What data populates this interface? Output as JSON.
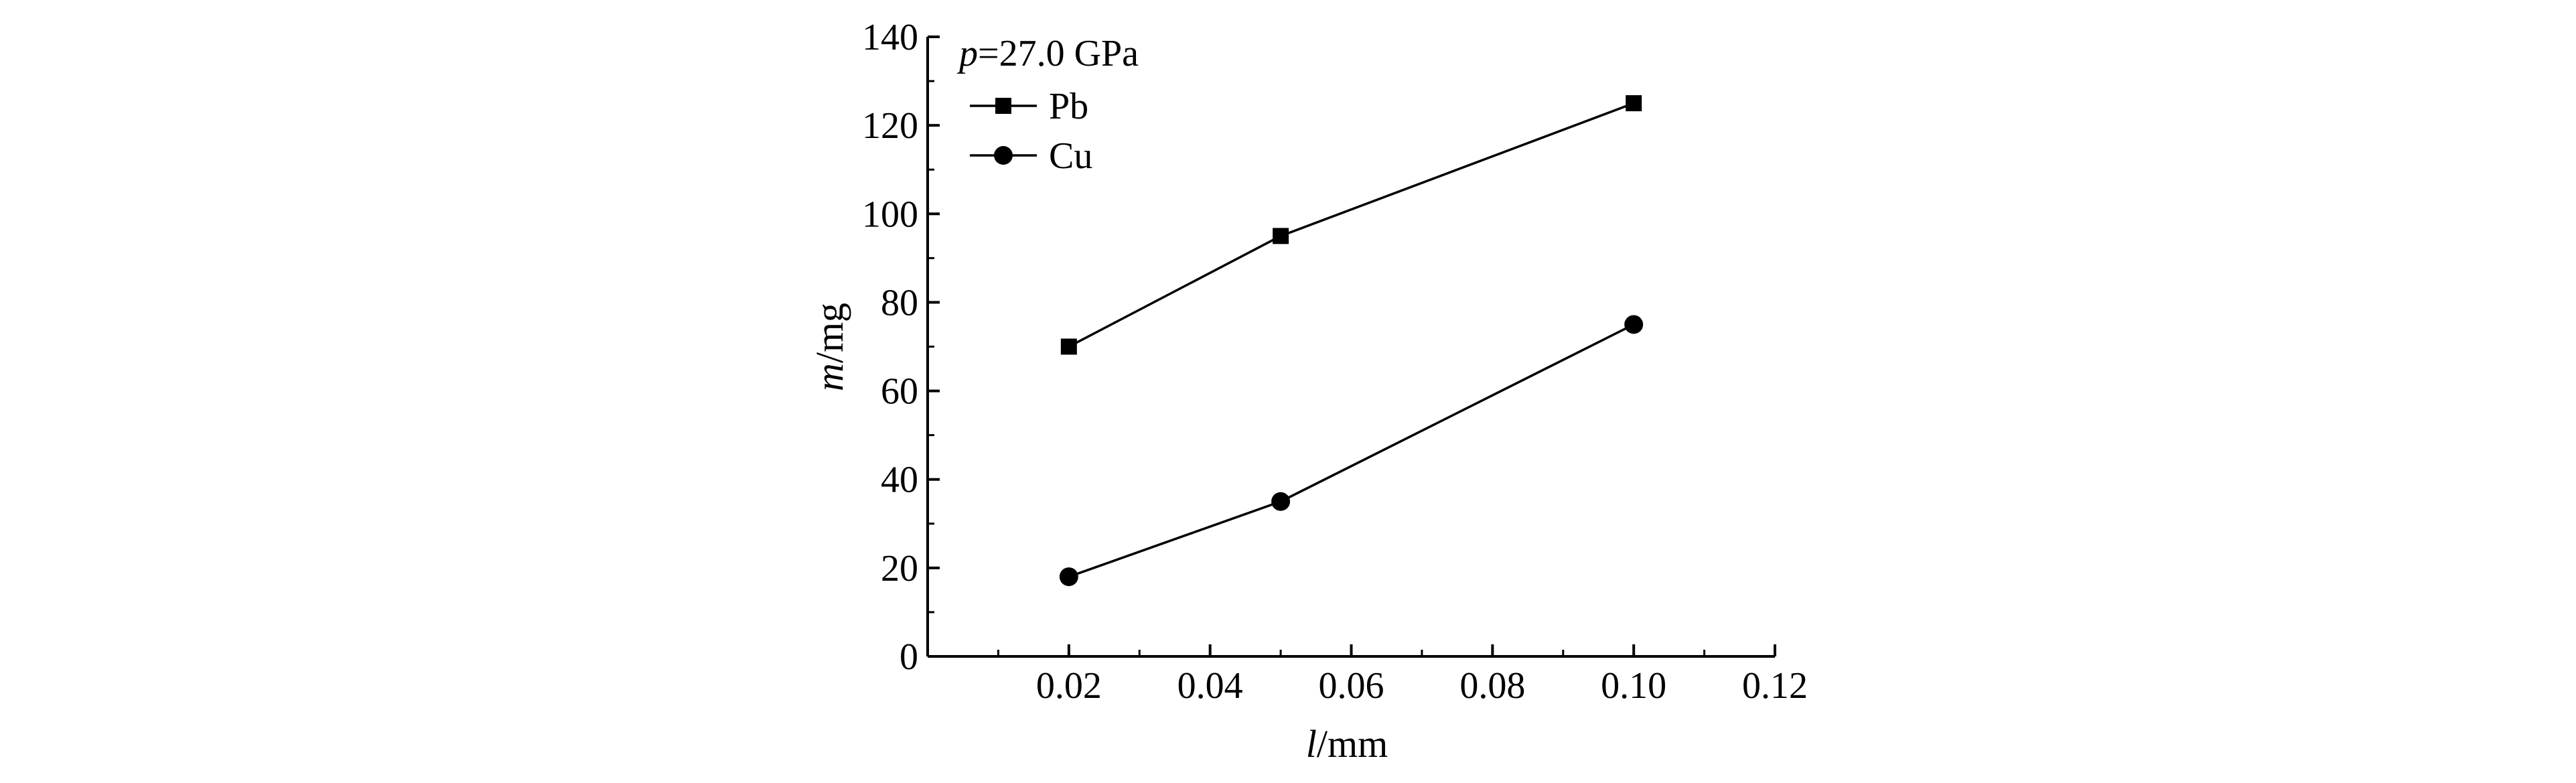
{
  "chart_data": {
    "type": "line",
    "annotation": {
      "var": "p",
      "rest": "=27.0 GPa"
    },
    "xlabel": {
      "var": "l",
      "unit": "/mm"
    },
    "ylabel": {
      "var": "m",
      "unit": "/mg"
    },
    "xlim": [
      0,
      0.12
    ],
    "ylim": [
      0,
      140
    ],
    "x_ticks": [
      "0.02",
      "0.04",
      "0.06",
      "0.08",
      "0.10",
      "0.12"
    ],
    "y_ticks": [
      "0",
      "20",
      "40",
      "60",
      "80",
      "100",
      "120",
      "140"
    ],
    "grid": false,
    "legend_position": "top-left",
    "series": [
      {
        "name": "Pb",
        "marker": "square",
        "color": "#000000",
        "x": [
          0.02,
          0.05,
          0.1
        ],
        "y": [
          70,
          95,
          125
        ]
      },
      {
        "name": "Cu",
        "marker": "circle",
        "color": "#000000",
        "x": [
          0.02,
          0.05,
          0.1
        ],
        "y": [
          18,
          35,
          75
        ]
      }
    ]
  }
}
